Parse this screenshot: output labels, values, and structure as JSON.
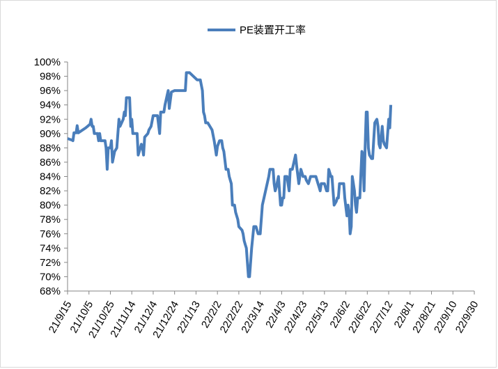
{
  "chart_data": {
    "type": "line",
    "title": "",
    "xlabel": "",
    "ylabel": "",
    "ylim": [
      68,
      100
    ],
    "y_step": 2,
    "y_tick_labels": [
      "68%",
      "70%",
      "72%",
      "74%",
      "76%",
      "78%",
      "80%",
      "82%",
      "84%",
      "86%",
      "88%",
      "90%",
      "92%",
      "94%",
      "96%",
      "98%",
      "100%"
    ],
    "x_tick_labels": [
      "21/9/15",
      "21/10/5",
      "21/10/25",
      "21/11/14",
      "21/12/4",
      "21/12/24",
      "22/1/13",
      "22/2/2",
      "22/2/22",
      "22/3/14",
      "22/4/3",
      "22/4/23",
      "22/5/13",
      "22/6/2",
      "22/6/22",
      "22/7/12",
      "22/8/1",
      "22/8/21",
      "22/9/10",
      "22/9/30"
    ],
    "x_start": "2021-09-15",
    "x_end": "2022-09-30",
    "grid": false,
    "legend_position": "top",
    "series": [
      {
        "name": "PE装置开工率",
        "color": "#4a7ebb",
        "points": [
          [
            "2021-09-15",
            89.3
          ],
          [
            "2021-09-19",
            89.1
          ],
          [
            "2021-09-20",
            89.0
          ],
          [
            "2021-09-21",
            90.1
          ],
          [
            "2021-09-23",
            90.1
          ],
          [
            "2021-09-24",
            91.1
          ],
          [
            "2021-09-25",
            90.1
          ],
          [
            "2021-10-02",
            90.8
          ],
          [
            "2021-10-06",
            91.3
          ],
          [
            "2021-10-07",
            92.0
          ],
          [
            "2021-10-08",
            91.0
          ],
          [
            "2021-10-09",
            91.0
          ],
          [
            "2021-10-10",
            90.0
          ],
          [
            "2021-10-13",
            90.0
          ],
          [
            "2021-10-14",
            89.0
          ],
          [
            "2021-10-15",
            90.0
          ],
          [
            "2021-10-16",
            89.0
          ],
          [
            "2021-10-20",
            89.0
          ],
          [
            "2021-10-21",
            88.0
          ],
          [
            "2021-10-22",
            85.0
          ],
          [
            "2021-10-23",
            88.0
          ],
          [
            "2021-10-25",
            88.0
          ],
          [
            "2021-10-26",
            89.0
          ],
          [
            "2021-10-27",
            86.0
          ],
          [
            "2021-10-29",
            87.5
          ],
          [
            "2021-10-31",
            88.0
          ],
          [
            "2021-11-02",
            92.0
          ],
          [
            "2021-11-03",
            91.0
          ],
          [
            "2021-11-06",
            92.0
          ],
          [
            "2021-11-07",
            93.0
          ],
          [
            "2021-11-08",
            92.5
          ],
          [
            "2021-11-09",
            95.0
          ],
          [
            "2021-11-12",
            95.0
          ],
          [
            "2021-11-13",
            91.0
          ],
          [
            "2021-11-14",
            92.0
          ],
          [
            "2021-11-15",
            90.0
          ],
          [
            "2021-11-19",
            90.0
          ],
          [
            "2021-11-20",
            87.0
          ],
          [
            "2021-11-22",
            88.0
          ],
          [
            "2021-11-23",
            88.5
          ],
          [
            "2021-11-24",
            88.0
          ],
          [
            "2021-11-25",
            87.0
          ],
          [
            "2021-11-26",
            89.5
          ],
          [
            "2021-11-29",
            90.0
          ],
          [
            "2021-11-30",
            90.5
          ],
          [
            "2021-12-02",
            91.0
          ],
          [
            "2021-12-04",
            92.5
          ],
          [
            "2021-12-08",
            92.5
          ],
          [
            "2021-12-10",
            90.0
          ],
          [
            "2021-12-11",
            93.0
          ],
          [
            "2021-12-14",
            93.0
          ],
          [
            "2021-12-15",
            94.0
          ],
          [
            "2021-12-18",
            96.0
          ],
          [
            "2021-12-19",
            93.5
          ],
          [
            "2021-12-21",
            95.8
          ],
          [
            "2021-12-24",
            96.0
          ],
          [
            "2022-01-03",
            96.0
          ],
          [
            "2022-01-04",
            98.5
          ],
          [
            "2022-01-07",
            98.5
          ],
          [
            "2022-01-14",
            97.5
          ],
          [
            "2022-01-17",
            97.5
          ],
          [
            "2022-01-19",
            96.0
          ],
          [
            "2022-01-20",
            93.0
          ],
          [
            "2022-01-21",
            92.5
          ],
          [
            "2022-01-22",
            91.5
          ],
          [
            "2022-01-24",
            91.5
          ],
          [
            "2022-01-26",
            91.0
          ],
          [
            "2022-01-28",
            90.5
          ],
          [
            "2022-01-30",
            89.0
          ],
          [
            "2022-01-31",
            88.0
          ],
          [
            "2022-02-01",
            87.0
          ],
          [
            "2022-02-02",
            88.2
          ],
          [
            "2022-02-04",
            89.0
          ],
          [
            "2022-02-06",
            89.0
          ],
          [
            "2022-02-07",
            88.0
          ],
          [
            "2022-02-08",
            87.5
          ],
          [
            "2022-02-10",
            85.0
          ],
          [
            "2022-02-12",
            85.0
          ],
          [
            "2022-02-13",
            84.0
          ],
          [
            "2022-02-15",
            83.0
          ],
          [
            "2022-02-16",
            80.0
          ],
          [
            "2022-02-18",
            80.0
          ],
          [
            "2022-02-19",
            79.0
          ],
          [
            "2022-02-21",
            78.0
          ],
          [
            "2022-02-22",
            77.0
          ],
          [
            "2022-02-25",
            76.5
          ],
          [
            "2022-02-26",
            76.0
          ],
          [
            "2022-02-27",
            75.0
          ],
          [
            "2022-02-28",
            74.5
          ],
          [
            "2022-03-01",
            74.0
          ],
          [
            "2022-03-02",
            72.0
          ],
          [
            "2022-03-03",
            70.0
          ],
          [
            "2022-03-04",
            70.0
          ],
          [
            "2022-03-05",
            72.0
          ],
          [
            "2022-03-06",
            74.0
          ],
          [
            "2022-03-08",
            77.0
          ],
          [
            "2022-03-10",
            77.0
          ],
          [
            "2022-03-11",
            76.5
          ],
          [
            "2022-03-12",
            76.0
          ],
          [
            "2022-03-14",
            76.0
          ],
          [
            "2022-03-16",
            80.0
          ],
          [
            "2022-03-19",
            82.0
          ],
          [
            "2022-03-22",
            84.0
          ],
          [
            "2022-03-23",
            85.0
          ],
          [
            "2022-03-26",
            85.0
          ],
          [
            "2022-03-27",
            83.0
          ],
          [
            "2022-03-28",
            82.0
          ],
          [
            "2022-03-29",
            82.5
          ],
          [
            "2022-03-31",
            84.0
          ],
          [
            "2022-04-01",
            82.0
          ],
          [
            "2022-04-02",
            80.0
          ],
          [
            "2022-04-03",
            80.0
          ],
          [
            "2022-04-04",
            81.0
          ],
          [
            "2022-04-05",
            81.0
          ],
          [
            "2022-04-06",
            84.0
          ],
          [
            "2022-04-08",
            84.0
          ],
          [
            "2022-04-09",
            83.0
          ],
          [
            "2022-04-10",
            82.0
          ],
          [
            "2022-04-11",
            85.0
          ],
          [
            "2022-04-13",
            85.0
          ],
          [
            "2022-04-16",
            87.0
          ],
          [
            "2022-04-17",
            85.5
          ],
          [
            "2022-04-19",
            83.0
          ],
          [
            "2022-04-20",
            84.0
          ],
          [
            "2022-04-21",
            85.0
          ],
          [
            "2022-04-23",
            84.0
          ],
          [
            "2022-04-25",
            84.0
          ],
          [
            "2022-04-26",
            83.5
          ],
          [
            "2022-04-28",
            83.0
          ],
          [
            "2022-04-30",
            84.0
          ],
          [
            "2022-05-05",
            84.0
          ],
          [
            "2022-05-07",
            83.0
          ],
          [
            "2022-05-08",
            82.5
          ],
          [
            "2022-05-09",
            82.0
          ],
          [
            "2022-05-10",
            83.0
          ],
          [
            "2022-05-13",
            83.0
          ],
          [
            "2022-05-15",
            82.0
          ],
          [
            "2022-05-16",
            82.0
          ],
          [
            "2022-05-17",
            85.0
          ],
          [
            "2022-05-19",
            84.0
          ],
          [
            "2022-05-20",
            84.0
          ],
          [
            "2022-05-22",
            80.0
          ],
          [
            "2022-05-24",
            80.5
          ],
          [
            "2022-05-25",
            81.0
          ],
          [
            "2022-05-26",
            81.0
          ],
          [
            "2022-05-27",
            83.0
          ],
          [
            "2022-05-29",
            83.0
          ],
          [
            "2022-05-31",
            83.0
          ],
          [
            "2022-06-01",
            81.0
          ],
          [
            "2022-06-03",
            78.5
          ],
          [
            "2022-06-04",
            80.0
          ],
          [
            "2022-06-05",
            79.0
          ],
          [
            "2022-06-06",
            76.0
          ],
          [
            "2022-06-07",
            77.0
          ],
          [
            "2022-06-08",
            84.0
          ],
          [
            "2022-06-10",
            82.0
          ],
          [
            "2022-06-11",
            80.0
          ],
          [
            "2022-06-12",
            79.0
          ],
          [
            "2022-06-13",
            81.0
          ],
          [
            "2022-06-15",
            81.0
          ],
          [
            "2022-06-17",
            87.5
          ],
          [
            "2022-06-18",
            87.0
          ],
          [
            "2022-06-19",
            82.0
          ],
          [
            "2022-06-20",
            88.0
          ],
          [
            "2022-06-21",
            93.0
          ],
          [
            "2022-06-22",
            93.0
          ],
          [
            "2022-06-23",
            88.0
          ],
          [
            "2022-06-24",
            87.0
          ],
          [
            "2022-06-26",
            86.5
          ],
          [
            "2022-06-27",
            86.5
          ],
          [
            "2022-06-28",
            89.0
          ],
          [
            "2022-06-29",
            91.5
          ],
          [
            "2022-07-01",
            92.0
          ],
          [
            "2022-07-02",
            91.0
          ],
          [
            "2022-07-03",
            88.5
          ],
          [
            "2022-07-04",
            88.0
          ],
          [
            "2022-07-06",
            91.0
          ],
          [
            "2022-07-07",
            89.0
          ],
          [
            "2022-07-08",
            88.5
          ],
          [
            "2022-07-10",
            88.0
          ],
          [
            "2022-07-12",
            92.0
          ],
          [
            "2022-07-13",
            90.8
          ],
          [
            "2022-07-14",
            94.0
          ]
        ]
      }
    ]
  }
}
